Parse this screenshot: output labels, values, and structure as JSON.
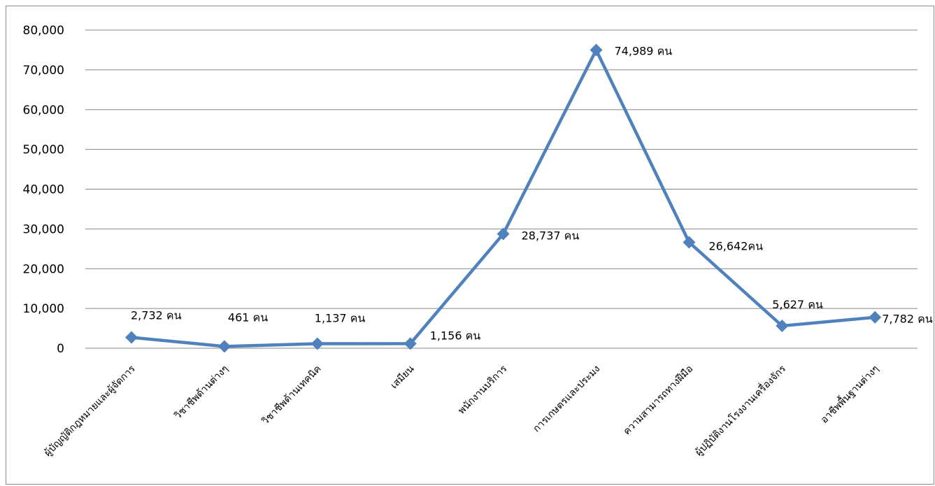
{
  "chart_data": {
    "type": "line",
    "categories": [
      "ผู้บัญญัติกฎหมายและผู้จัดการ",
      "วิชาชีพด้านต่างๆ",
      "วิชาชีพด้านเทคนิค",
      "เสมียน",
      "พนักงานบริการ",
      "การเกษตรและประมง",
      "ความสามารถทางฝีมือ",
      "ผู้ปฏิบัติงานโรงงานเครื่องจักร",
      "อาชีพพื้นฐานต่างๆ"
    ],
    "values": [
      2732,
      461,
      1137,
      1156,
      28737,
      74989,
      26642,
      5627,
      7782
    ],
    "data_labels": [
      "2,732 คน",
      "461 คน",
      "1,137 คน",
      "1,156 คน",
      "28,737 คน",
      "74,989 คน",
      "26,642คน",
      "5,627 คน",
      "7,782 คน"
    ],
    "ylim": [
      0,
      80000
    ],
    "yticks": [
      0,
      10000,
      20000,
      30000,
      40000,
      50000,
      60000,
      70000,
      80000
    ],
    "ytick_labels": [
      "0",
      "10,000",
      "20,000",
      "30,000",
      "40,000",
      "50,000",
      "60,000",
      "70,000",
      "80,000"
    ],
    "grid": true,
    "legend": "none",
    "marker": "diamond",
    "line_color": "#4f81bd",
    "grid_color": "#868686"
  }
}
